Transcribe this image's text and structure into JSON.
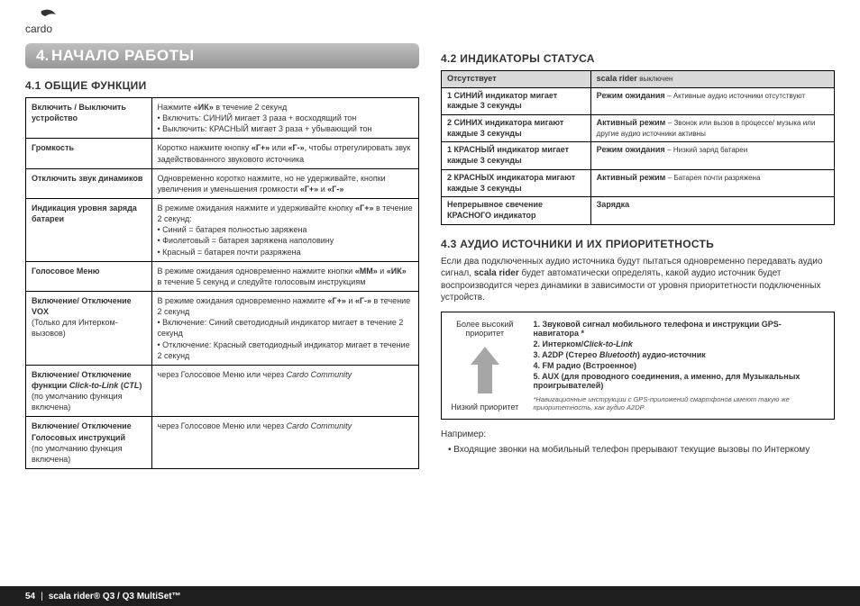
{
  "logo_text": "cardo",
  "banner": {
    "num": "4.",
    "txt": "НАЧАЛО РАБОТЫ"
  },
  "s41_title": "4.1 ОБЩИЕ ФУНКЦИИ",
  "s42_title": "4.2 ИНДИКАТОРЫ СТАТУСА",
  "s43_title": "4.3 АУДИО ИСТОЧНИКИ И ИХ ПРИОРИТЕТНОСТЬ",
  "func_rows": [
    {
      "l": "Включить / Выключить устройство",
      "r": [
        "Нажмите «ИК» в течение 2 секунд",
        "• Включить: СИНИЙ мигает 3 раза + восходящий тон",
        "• Выключить: КРАСНЫЙ мигает 3 раза + убывающий тон"
      ]
    },
    {
      "l": "Громкость",
      "r": [
        "Коротко нажмите кнопку «Г+» или «Г-», чтобы отрегулировать звук задействованного звукового источника"
      ]
    },
    {
      "l": "Отключить звук динамиков",
      "r": [
        "Одновременно коротко нажмите, но не удерживайте, кнопки увеличения и уменьшения громкости «Г+» и «Г-»"
      ]
    },
    {
      "l": "Индикация уровня заряда батареи",
      "r": [
        "В режиме ожидания нажмите и удерживайте кнопку «Г+» в течение 2 секунд:",
        "• Синий          = батарея полностью заряжена",
        "• Фиолетовый = батарея заряжена наполовину",
        "• Красный      = батарея почти разряжена"
      ]
    },
    {
      "l": "Голосовое Меню",
      "r": [
        "В режиме ожидания одновременно нажмите кнопки «ММ» и «ИК» в течение 5 секунд и следуйте голосовым инструкциям"
      ]
    },
    {
      "l": "Включение/ Отключение VOX",
      "l2": "(Только для Интерком-вызовов)",
      "r": [
        "В режиме ожидания одновременно нажмите «Г+» и «Г-» в течение 2 секунд",
        "• Включение: Синий светодиодный индикатор мигает в течение 2 секунд",
        "• Отключение: Красный светодиодный индикатор мигает в течение 2 секунд"
      ]
    },
    {
      "l": "Включение/ Отключение функции <i>Click-to-Link</i> (<i>CTL</i>)",
      "l2": "(по умолчанию функция включена)",
      "r": [
        "через Голосовое Меню или через <i>Cardo Community</i>"
      ]
    },
    {
      "l": "Включение/ Отключение Голосовых инструкций",
      "l2": "(по умолчанию функция включена)",
      "r": [
        "через Голосовое Меню или через <i>Cardo Community</i>"
      ]
    }
  ],
  "status_header": {
    "l": "Отсутствует",
    "r": "scala rider",
    "r2": "выключен"
  },
  "status_rows": [
    {
      "l": "1 СИНИЙ индикатор мигает каждые 3 секунды",
      "r": "Режим ожидания",
      "r2": "– Активные аудио источники отсутствуют"
    },
    {
      "l": "2 СИНИХ индикатора мигают каждые 3 секунды",
      "r": "Активный режим",
      "r2": "– Звонок или вызов в процессе/ музыка или другие аудио источники активны"
    },
    {
      "l": "1 КРАСНЫЙ индикатор мигает каждые 3 секунды",
      "r": "Режим ожидания",
      "r2": "– Низкий заряд батареи"
    },
    {
      "l": "2 КРАСНЫХ индикатора мигают каждые 3 секунды",
      "r": "Активный режим",
      "r2": "– Батарея почти разряжена"
    },
    {
      "l": "Непрерывное свечение КРАСНОГО индикатор",
      "r": "Зарядка",
      "r2": ""
    }
  ],
  "s43_para": "Если два подключенных аудио источника будут пытаться одновременно передавать аудио сигнал, <b>scala rider</b> будет автоматически определять, какой аудио источник будет воспроизводится через динамики в зависимости от уровня приоритетности подключенных устройств.",
  "prio_high": "Более высокий приоритет",
  "prio_low": "Низкий приоритет",
  "prio_list": [
    "Звуковой сигнал мобильного телефона и инструкции GPS-навигатора *",
    "Интерком/<i>Click-to-Link</i>",
    "A2DP (Стерео <i>Bluetooth</i>) аудио-источник",
    "FM радио (Встроенное)",
    "AUX (для проводного соединения, а именно, для Музыкальных проигрывателей)"
  ],
  "prio_footnote": "*Навигационные инструкции с GPS-приложений смартфонов имеют такую же приоритетность, как аудио A2DP",
  "example_label": "Например:",
  "example_bullet": "Входящие звонки на мобильный телефон прерывают текущие вызовы по Интеркому",
  "footer": {
    "page": "54",
    "sep": "|",
    "prod": "scala rider® Q3 / Q3 MultiSet™"
  },
  "colors": {
    "banner_from": "#bfbfbf",
    "banner_to": "#969696",
    "footer": "#1f1f1f",
    "th": "#d9d9d9"
  }
}
